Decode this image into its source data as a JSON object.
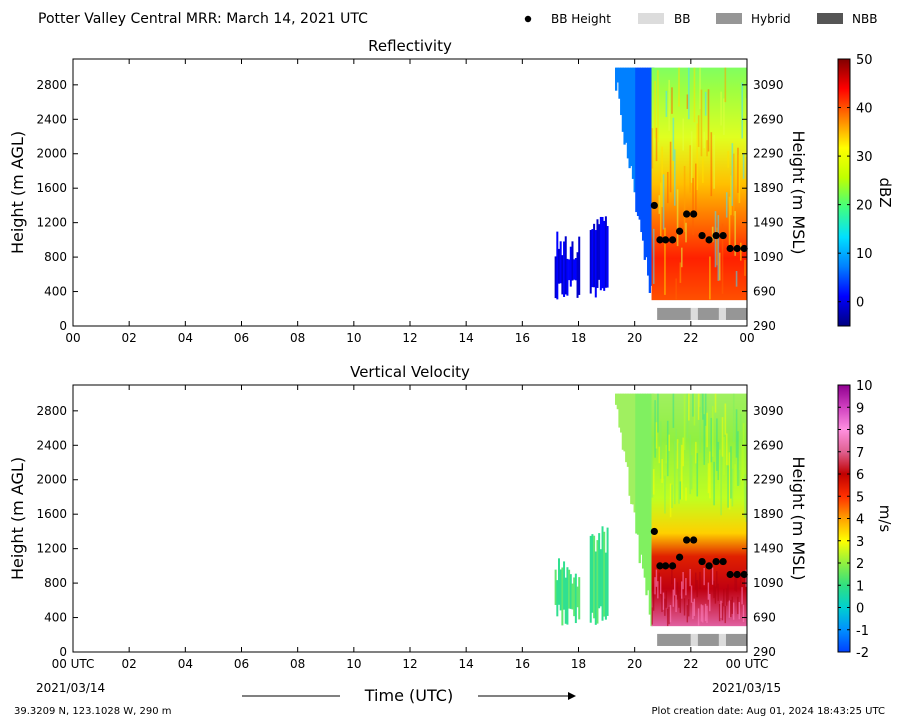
{
  "header": {
    "title": "Potter Valley Central MRR:  March 14, 2021 UTC"
  },
  "legend": {
    "items": [
      {
        "label": "BB Height",
        "kind": "dot",
        "color": "#000000"
      },
      {
        "label": "BB",
        "kind": "bar",
        "color": "#dcdcdc"
      },
      {
        "label": "Hybrid",
        "kind": "bar",
        "color": "#969696"
      },
      {
        "label": "NBB",
        "kind": "bar",
        "color": "#555555"
      }
    ]
  },
  "footer": {
    "location": "39.3209 N, 123.1028 W, 290 m",
    "creation": "Plot creation date: Aug 01, 2024 18:43:25 UTC",
    "start_date": "2021/03/14",
    "end_date": "2021/03/15",
    "time_label": "Time (UTC)"
  },
  "chart_data": [
    {
      "type": "heatmap",
      "title": "Reflectivity",
      "ylabel": "Height (m AGL)",
      "ylabel_right": "Height (m MSL)",
      "colorbar_label": "dBZ",
      "x_ticks": [
        "00",
        "02",
        "04",
        "06",
        "08",
        "10",
        "12",
        "14",
        "16",
        "18",
        "20",
        "22",
        "00"
      ],
      "xlim_hours": [
        0,
        24
      ],
      "y_ticks": [
        "0",
        "400",
        "800",
        "1200",
        "1600",
        "2000",
        "2400",
        "2800"
      ],
      "ylim": [
        0,
        3100
      ],
      "y_ticks_right": [
        "290",
        "690",
        "1090",
        "1490",
        "1890",
        "2290",
        "2690",
        "3090"
      ],
      "colorbar": {
        "range": [
          -5,
          50
        ],
        "ticks": [
          "0",
          "10",
          "20",
          "30",
          "40",
          "50"
        ],
        "colors": [
          "#000080",
          "#0000ff",
          "#0080ff",
          "#00e0ff",
          "#40ff80",
          "#c0ff00",
          "#ffff00",
          "#ff8000",
          "#ff0000",
          "#800000"
        ]
      },
      "bb_height": {
        "x_hours": [
          20.7,
          20.9,
          21.1,
          21.35,
          21.6,
          21.85,
          22.1,
          22.4,
          22.65,
          22.9,
          23.15,
          23.4,
          23.65,
          23.9
        ],
        "y": [
          1400,
          1000,
          1000,
          1000,
          1100,
          1300,
          1300,
          1050,
          1000,
          1050,
          1050,
          900,
          900,
          900
        ]
      },
      "bb_type": [
        {
          "start": 20.8,
          "end": 22.0,
          "type": "Hybrid"
        },
        {
          "start": 22.0,
          "end": 22.25,
          "type": "BB"
        },
        {
          "start": 22.25,
          "end": 23.0,
          "type": "Hybrid"
        },
        {
          "start": 23.0,
          "end": 23.25,
          "type": "BB"
        },
        {
          "start": 23.25,
          "end": 24.0,
          "type": "Hybrid"
        }
      ]
    },
    {
      "type": "heatmap",
      "title": "Vertical Velocity",
      "ylabel": "Height (m AGL)",
      "ylabel_right": "Height (m MSL)",
      "colorbar_label": "m/s",
      "x_ticks": [
        "00 UTC",
        "02",
        "04",
        "06",
        "08",
        "10",
        "12",
        "14",
        "16",
        "18",
        "20",
        "22",
        "00 UTC"
      ],
      "xlim_hours": [
        0,
        24
      ],
      "y_ticks": [
        "0",
        "400",
        "800",
        "1200",
        "1600",
        "2000",
        "2400",
        "2800"
      ],
      "ylim": [
        0,
        3100
      ],
      "y_ticks_right": [
        "290",
        "690",
        "1090",
        "1490",
        "1890",
        "2290",
        "2690",
        "3090"
      ],
      "colorbar": {
        "range": [
          -2,
          10
        ],
        "ticks": [
          "-2",
          "-1",
          "0",
          "1",
          "2",
          "3",
          "4",
          "5",
          "6",
          "7",
          "8",
          "9",
          "10"
        ],
        "colors": [
          "#0040ff",
          "#0090ff",
          "#00d0d0",
          "#30e080",
          "#90f040",
          "#ffff00",
          "#ffa000",
          "#ff3000",
          "#c00000",
          "#e06090",
          "#ff90e0",
          "#d040c0",
          "#900090"
        ]
      },
      "bb_height": {
        "x_hours": [
          20.7,
          20.9,
          21.1,
          21.35,
          21.6,
          21.85,
          22.1,
          22.4,
          22.65,
          22.9,
          23.15,
          23.4,
          23.65,
          23.9
        ],
        "y": [
          1400,
          1000,
          1000,
          1000,
          1100,
          1300,
          1300,
          1050,
          1000,
          1050,
          1050,
          900,
          900,
          900
        ]
      },
      "bb_type": [
        {
          "start": 20.8,
          "end": 22.0,
          "type": "Hybrid"
        },
        {
          "start": 22.0,
          "end": 22.25,
          "type": "BB"
        },
        {
          "start": 22.25,
          "end": 23.0,
          "type": "Hybrid"
        },
        {
          "start": 23.0,
          "end": 23.25,
          "type": "BB"
        },
        {
          "start": 23.25,
          "end": 24.0,
          "type": "Hybrid"
        }
      ]
    }
  ]
}
